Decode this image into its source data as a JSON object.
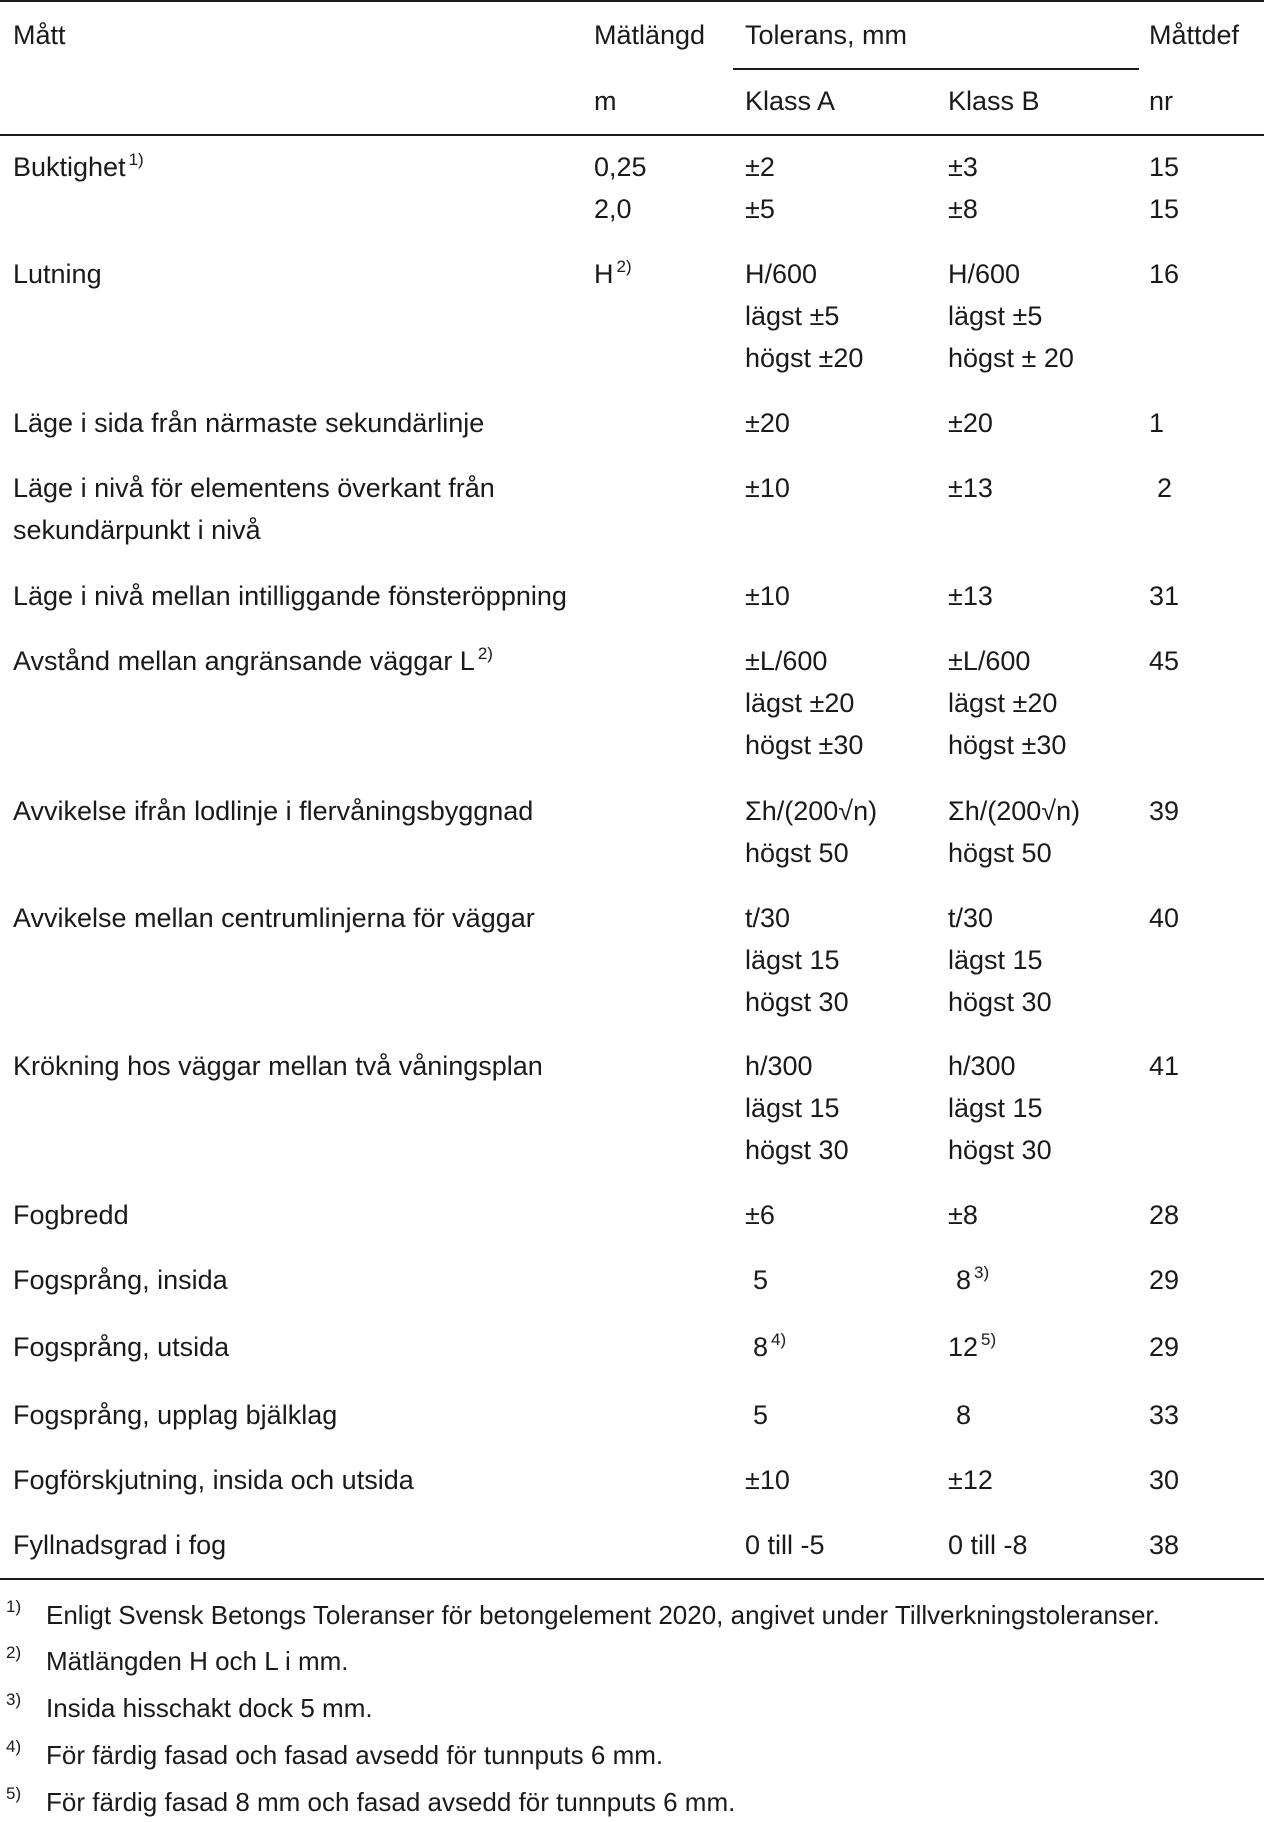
{
  "table": {
    "headers": {
      "col1": "Mått",
      "col2": "Mätlängd",
      "tol": "Tolerans, mm",
      "col5": "Måttdef",
      "unit2": "m",
      "classA": "Klass A",
      "classB": "Klass B",
      "unit5": "nr"
    },
    "rows": [
      {
        "label": "Buktighet",
        "label_sup": "1)",
        "len": [
          "0,25",
          "2,0"
        ],
        "a": [
          "±2",
          "±5"
        ],
        "b": [
          "±3",
          "±8"
        ],
        "nr": [
          "15",
          "15"
        ]
      },
      {
        "label": "Lutning",
        "len": [
          "H"
        ],
        "len_sup": "2)",
        "a": [
          "H/600",
          "lägst ±5",
          "högst ±20"
        ],
        "b": [
          "H/600",
          "lägst ±5",
          "högst ± 20"
        ],
        "nr": [
          "16"
        ]
      },
      {
        "label": "Läge i sida från närmaste sekundärlinje",
        "a": [
          "±20"
        ],
        "b": [
          "±20"
        ],
        "nr": [
          "1"
        ]
      },
      {
        "label": "Läge i nivå för elementens överkant från",
        "label2": "sekundärpunkt i nivå",
        "a": [
          "±10"
        ],
        "b": [
          "±13"
        ],
        "nr": [
          "2"
        ]
      },
      {
        "label": "Läge i nivå mellan intilliggande fönsteröppning",
        "a": [
          "±10"
        ],
        "b": [
          "±13"
        ],
        "nr": [
          "31"
        ]
      },
      {
        "label": "Avstånd mellan angränsande väggar L",
        "label_sup": "2)",
        "a": [
          "±L/600",
          "lägst ±20",
          "högst ±30"
        ],
        "b": [
          "±L/600",
          "lägst ±20",
          "högst ±30"
        ],
        "nr": [
          "45"
        ]
      },
      {
        "label": "Avvikelse ifrån lodlinje i flervåningsbyggnad",
        "a": [
          "Σh/(200√n)",
          "högst 50"
        ],
        "b": [
          "Σh/(200√n)",
          "högst 50"
        ],
        "nr": [
          "39"
        ]
      },
      {
        "label": "Avvikelse mellan centrumlinjerna för väggar",
        "a": [
          "t/30",
          "lägst 15",
          "högst 30"
        ],
        "b": [
          "t/30",
          "lägst 15",
          "högst 30"
        ],
        "nr": [
          "40"
        ]
      },
      {
        "label": "Krökning hos väggar mellan två våningsplan",
        "a": [
          "h/300",
          "lägst 15",
          "högst 30"
        ],
        "b": [
          "h/300",
          "lägst 15",
          "högst 30"
        ],
        "nr": [
          "41"
        ]
      },
      {
        "label": "Fogbredd",
        "a": [
          "±6"
        ],
        "b": [
          "±8"
        ],
        "nr": [
          "28"
        ]
      },
      {
        "label": "Fogsprång, insida",
        "a": [
          "5"
        ],
        "b": [
          "8"
        ],
        "b_sup": "3)",
        "nr": [
          "29"
        ]
      },
      {
        "label": "Fogsprång, utsida",
        "a": [
          "8"
        ],
        "a_sup": "4)",
        "b": [
          "12"
        ],
        "b_sup": "5)",
        "nr": [
          "29"
        ]
      },
      {
        "label": "Fogsprång, upplag bjälklag",
        "a": [
          "5"
        ],
        "b": [
          "8"
        ],
        "nr": [
          "33"
        ]
      },
      {
        "label": "Fogförskjutning, insida och utsida",
        "a": [
          "±10"
        ],
        "b": [
          "±12"
        ],
        "nr": [
          "30"
        ]
      },
      {
        "label": "Fyllnadsgrad i fog",
        "a": [
          "0 till -5"
        ],
        "b": [
          "0 till -8"
        ],
        "nr": [
          "38"
        ]
      }
    ]
  },
  "footnotes": [
    {
      "mark": "1)",
      "text": "Enligt Svensk Betongs Toleranser för betongelement 2020, angivet under Tillverkningstoleranser."
    },
    {
      "mark": "2)",
      "text": "Mätlängden H och L i mm."
    },
    {
      "mark": "3)",
      "text": "Insida hisschakt dock 5 mm."
    },
    {
      "mark": "4)",
      "text": "För färdig fasad och fasad avsedd för tunnputs 6 mm."
    },
    {
      "mark": "5)",
      "text": "För färdig fasad 8 mm och fasad avsedd för tunnputs 6 mm."
    }
  ]
}
